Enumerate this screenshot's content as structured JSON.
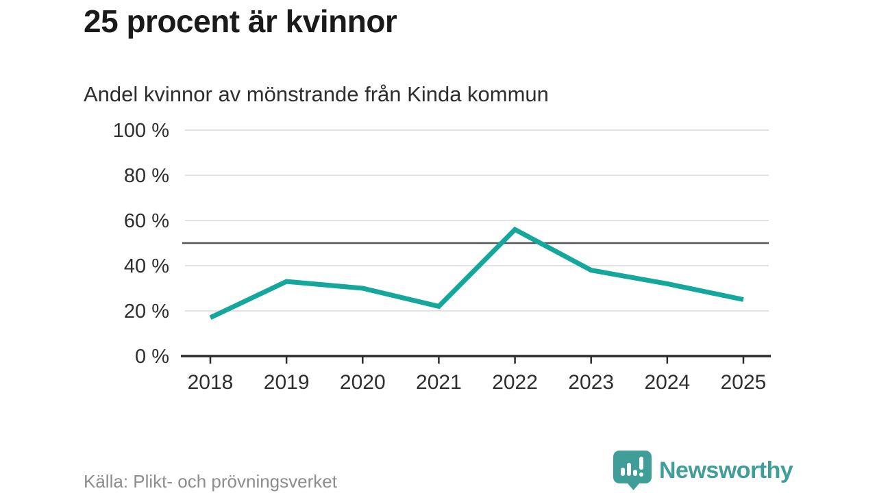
{
  "header": {
    "title": "25 procent är kvinnor",
    "subtitle": "Andel kvinnor av mönstrande från Kinda kommun"
  },
  "chart_data": {
    "type": "line",
    "title": "25 procent är kvinnor",
    "subtitle": "Andel kvinnor av mönstrande från Kinda kommun",
    "x": [
      "2018",
      "2019",
      "2020",
      "2021",
      "2022",
      "2023",
      "2024",
      "2025"
    ],
    "series": [
      {
        "name": "Andel kvinnor av mönstrande",
        "values": [
          17,
          33,
          30,
          22,
          56,
          38,
          32,
          25
        ]
      }
    ],
    "unit": "%",
    "xlabel": "",
    "ylabel": "",
    "ylim": [
      0,
      100
    ],
    "yticks": [
      0,
      20,
      40,
      60,
      80,
      100
    ],
    "ytick_suffix": " %",
    "reference_line": 50,
    "grid": true,
    "legend": "none",
    "colors": {
      "line": "#14a79b",
      "grid": "#e2e2e2",
      "reference_line": "#555555",
      "axis": "#2b2b2b",
      "tick_label": "#2e2e2e"
    }
  },
  "footer": {
    "source": "Källa: Plikt- och prövningsverket",
    "brand": "Newsworthy",
    "brand_color": "#3f9f98"
  }
}
